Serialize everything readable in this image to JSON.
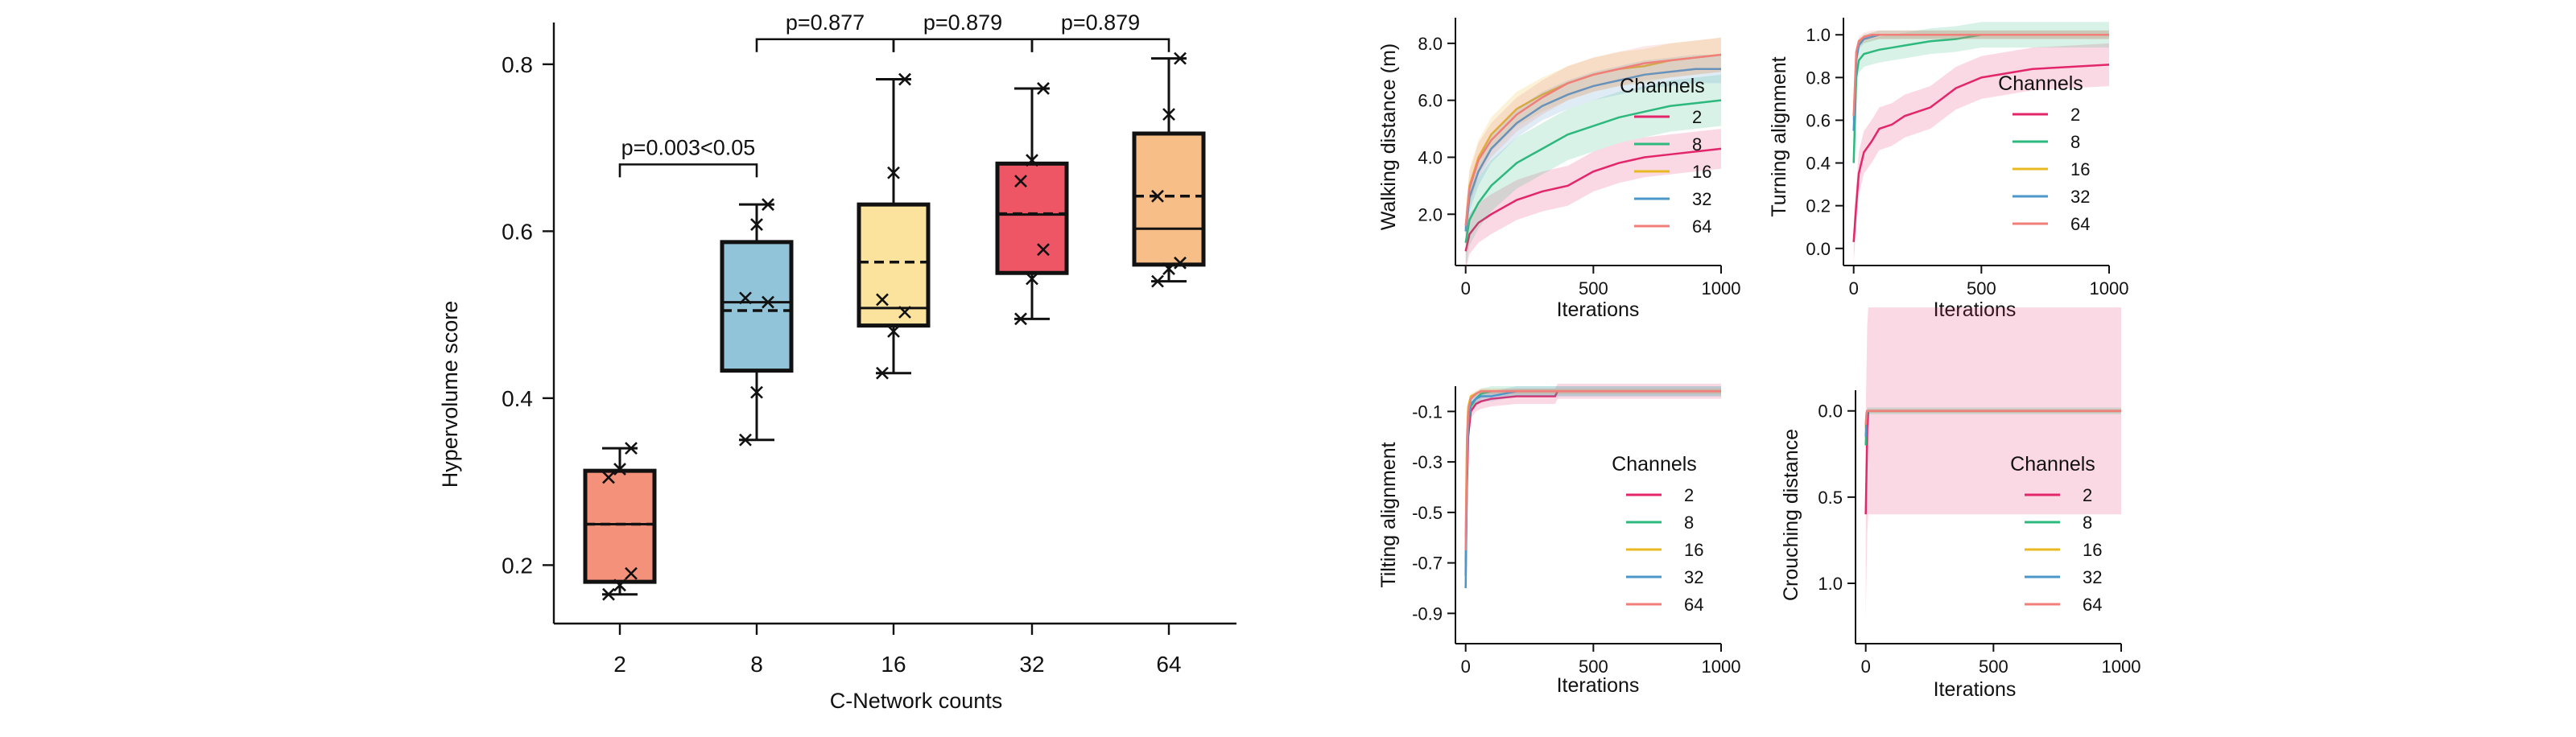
{
  "chart_data": [
    {
      "type": "box",
      "xlabel": "C-Network counts",
      "ylabel": "Hypervolume score",
      "ylim": [
        0.13,
        0.85
      ],
      "yticks": [
        "0.2",
        "0.4",
        "0.6",
        "0.8"
      ],
      "ytick_values": [
        0.2,
        0.4,
        0.6,
        0.8
      ],
      "categories": [
        "2",
        "8",
        "16",
        "32",
        "64"
      ],
      "colors": [
        "#F4917A",
        "#92C4D9",
        "#FBE39E",
        "#EE5565",
        "#F7BE87"
      ],
      "boxes": [
        {
          "category": "2",
          "whisker_low": 0.165,
          "q1": 0.18,
          "median": 0.249,
          "mean": 0.249,
          "q3": 0.313,
          "whisker_high": 0.34,
          "points": [
            0.165,
            0.176,
            0.19,
            0.305,
            0.315,
            0.34
          ]
        },
        {
          "category": "8",
          "whisker_low": 0.35,
          "q1": 0.433,
          "median": 0.515,
          "mean": 0.505,
          "q3": 0.587,
          "whisker_high": 0.632,
          "points": [
            0.35,
            0.407,
            0.515,
            0.52,
            0.608,
            0.632
          ]
        },
        {
          "category": "16",
          "whisker_low": 0.43,
          "q1": 0.487,
          "median": 0.508,
          "mean": 0.563,
          "q3": 0.632,
          "whisker_high": 0.782,
          "points": [
            0.43,
            0.48,
            0.503,
            0.518,
            0.67,
            0.782
          ]
        },
        {
          "category": "32",
          "whisker_low": 0.495,
          "q1": 0.55,
          "median": 0.62,
          "mean": 0.621,
          "q3": 0.681,
          "whisker_high": 0.771,
          "points": [
            0.495,
            0.543,
            0.578,
            0.66,
            0.685,
            0.771
          ]
        },
        {
          "category": "64",
          "whisker_low": 0.54,
          "q1": 0.56,
          "median": 0.603,
          "mean": 0.642,
          "q3": 0.717,
          "whisker_high": 0.807,
          "points": [
            0.54,
            0.555,
            0.562,
            0.642,
            0.74,
            0.807
          ]
        }
      ],
      "annotations": [
        {
          "text": "p=0.003<0.05",
          "from": "2",
          "to": "8",
          "level": 0.68
        },
        {
          "text": "p=0.877",
          "from": "8",
          "to": "16",
          "level": 0.83
        },
        {
          "text": "p=0.879",
          "from": "16",
          "to": "32",
          "level": 0.83
        },
        {
          "text": "p=0.879",
          "from": "32",
          "to": "64",
          "level": 0.83
        }
      ]
    },
    {
      "type": "line",
      "xlabel": "Iterations",
      "ylabel": "Walking distance (m)",
      "xlim": [
        -40,
        1000
      ],
      "ylim": [
        0.2,
        8.9
      ],
      "xticks": [
        "0",
        "500",
        "1000"
      ],
      "xtick_values": [
        0,
        500,
        1000
      ],
      "yticks": [
        "2.0",
        "4.0",
        "6.0",
        "8.0"
      ],
      "ytick_values": [
        2,
        4,
        6,
        8
      ],
      "legend_title": "Channels",
      "legend_position": "right",
      "x": [
        0,
        15,
        50,
        100,
        200,
        300,
        400,
        500,
        600,
        700,
        800,
        900,
        1000
      ],
      "series": [
        {
          "name": "2",
          "color": "#E3266A",
          "values": [
            0.7,
            1.3,
            1.7,
            2.0,
            2.5,
            2.8,
            3.0,
            3.5,
            3.8,
            4.0,
            4.1,
            4.2,
            4.3
          ],
          "band": 0.7
        },
        {
          "name": "8",
          "color": "#2DB87D",
          "values": [
            1.0,
            1.8,
            2.4,
            3.0,
            3.8,
            4.3,
            4.8,
            5.1,
            5.4,
            5.6,
            5.8,
            5.9,
            6.0
          ],
          "band": 0.9
        },
        {
          "name": "16",
          "color": "#E8B923",
          "values": [
            1.5,
            3.0,
            4.0,
            4.8,
            5.7,
            6.2,
            6.6,
            6.9,
            7.1,
            7.2,
            7.4,
            7.5,
            7.6
          ],
          "band": 0.6
        },
        {
          "name": "32",
          "color": "#4C97C9",
          "values": [
            1.4,
            2.6,
            3.5,
            4.3,
            5.2,
            5.8,
            6.2,
            6.5,
            6.7,
            6.9,
            7.0,
            7.1,
            7.1
          ],
          "band": 0.5
        },
        {
          "name": "64",
          "color": "#F07F7A",
          "values": [
            1.6,
            2.9,
            3.9,
            4.6,
            5.5,
            6.1,
            6.6,
            6.9,
            7.1,
            7.3,
            7.4,
            7.5,
            7.6
          ],
          "band": 0.6
        }
      ]
    },
    {
      "type": "line",
      "xlabel": "Iterations",
      "ylabel": "Turning alignment",
      "xlim": [
        -40,
        1000
      ],
      "ylim": [
        -0.08,
        1.08
      ],
      "xticks": [
        "0",
        "500",
        "1000"
      ],
      "xtick_values": [
        0,
        500,
        1000
      ],
      "yticks": [
        "0.0",
        "0.2",
        "0.4",
        "0.6",
        "0.8",
        "1.0"
      ],
      "ytick_values": [
        0,
        0.2,
        0.4,
        0.6,
        0.8,
        1.0
      ],
      "legend_title": "Channels",
      "legend_position": "right",
      "x": [
        0,
        10,
        20,
        40,
        70,
        100,
        150,
        200,
        300,
        400,
        500,
        700,
        1000
      ],
      "series": [
        {
          "name": "2",
          "color": "#E3266A",
          "values": [
            0.03,
            0.2,
            0.35,
            0.45,
            0.5,
            0.56,
            0.58,
            0.62,
            0.66,
            0.75,
            0.8,
            0.84,
            0.86
          ],
          "band": 0.1
        },
        {
          "name": "8",
          "color": "#2DB87D",
          "values": [
            0.4,
            0.8,
            0.88,
            0.91,
            0.92,
            0.93,
            0.94,
            0.95,
            0.97,
            0.98,
            1.0,
            1.0,
            1.0
          ],
          "band": 0.06
        },
        {
          "name": "16",
          "color": "#E8B923",
          "values": [
            0.6,
            0.9,
            0.96,
            0.98,
            0.99,
            1.0,
            1.0,
            1.0,
            1.0,
            1.0,
            1.0,
            1.0,
            1.0
          ],
          "band": 0.02
        },
        {
          "name": "32",
          "color": "#4C97C9",
          "values": [
            0.55,
            0.88,
            0.95,
            0.98,
            0.99,
            1.0,
            1.0,
            1.0,
            1.0,
            1.0,
            1.0,
            1.0,
            1.0
          ],
          "band": 0.02
        },
        {
          "name": "64",
          "color": "#F07F7A",
          "values": [
            0.62,
            0.92,
            0.97,
            0.99,
            1.0,
            1.0,
            1.0,
            1.0,
            1.0,
            1.0,
            1.0,
            1.0,
            1.0
          ],
          "band": 0.02
        }
      ]
    },
    {
      "type": "line",
      "xlabel": "Iterations",
      "ylabel": "Tilting alignment",
      "xlim": [
        -40,
        1000
      ],
      "ylim": [
        -1.02,
        0.0
      ],
      "xticks": [
        "0",
        "500",
        "1000"
      ],
      "xtick_values": [
        0,
        500,
        1000
      ],
      "yticks": [
        "-0.1",
        "-0.3",
        "-0.5",
        "-0.7",
        "-0.9"
      ],
      "ytick_values": [
        -0.1,
        -0.3,
        -0.5,
        -0.7,
        -0.9
      ],
      "legend_title": "Channels",
      "legend_position": "right",
      "x": [
        0,
        5,
        10,
        20,
        40,
        60,
        100,
        200,
        350,
        360,
        1000
      ],
      "series": [
        {
          "name": "2",
          "color": "#E3266A",
          "values": [
            -0.75,
            -0.4,
            -0.2,
            -0.1,
            -0.07,
            -0.06,
            -0.05,
            -0.04,
            -0.04,
            -0.02,
            -0.02
          ],
          "band": 0.03
        },
        {
          "name": "8",
          "color": "#2DB87D",
          "values": [
            -0.7,
            -0.3,
            -0.15,
            -0.08,
            -0.05,
            -0.03,
            -0.02,
            -0.02,
            -0.02,
            -0.02,
            -0.02
          ],
          "band": 0.02
        },
        {
          "name": "16",
          "color": "#E8B923",
          "values": [
            -0.6,
            -0.2,
            -0.08,
            -0.04,
            -0.03,
            -0.02,
            -0.02,
            -0.02,
            -0.02,
            -0.02,
            -0.02
          ],
          "band": 0.01
        },
        {
          "name": "32",
          "color": "#4C97C9",
          "values": [
            -0.8,
            -0.35,
            -0.15,
            -0.07,
            -0.05,
            -0.04,
            -0.04,
            -0.02,
            -0.02,
            -0.02,
            -0.02
          ],
          "band": 0.02
        },
        {
          "name": "64",
          "color": "#F07F7A",
          "values": [
            -0.65,
            -0.25,
            -0.1,
            -0.05,
            -0.03,
            -0.02,
            -0.02,
            -0.02,
            -0.02,
            -0.02,
            -0.02
          ],
          "band": 0.01
        }
      ]
    },
    {
      "type": "line",
      "xlabel": "Iterations",
      "ylabel": "Crouching distance",
      "xlim": [
        -40,
        1000
      ],
      "ylim": [
        -0.12,
        1.35
      ],
      "y_inverted": true,
      "xticks": [
        "0",
        "500",
        "1000"
      ],
      "xtick_values": [
        0,
        500,
        1000
      ],
      "yticks": [
        "0.0",
        "0.5",
        "1.0"
      ],
      "ytick_values": [
        0,
        0.5,
        1.0
      ],
      "legend_title": "Channels",
      "legend_position": "right",
      "x": [
        0,
        3,
        6,
        10,
        1000
      ],
      "series": [
        {
          "name": "2",
          "color": "#E3266A",
          "values": [
            0.6,
            0.35,
            0.1,
            0.0,
            0.0
          ],
          "band": 0.6
        },
        {
          "name": "8",
          "color": "#2DB87D",
          "values": [
            0.2,
            0.05,
            0.0,
            0.0,
            0.0
          ],
          "band": 0.02
        },
        {
          "name": "16",
          "color": "#E8B923",
          "values": [
            0.1,
            0.02,
            0.0,
            0.0,
            0.0
          ],
          "band": 0.01
        },
        {
          "name": "32",
          "color": "#4C97C9",
          "values": [
            0.15,
            0.03,
            0.0,
            0.0,
            0.0
          ],
          "band": 0.01
        },
        {
          "name": "64",
          "color": "#F07F7A",
          "values": [
            0.08,
            0.01,
            0.0,
            0.0,
            0.0
          ],
          "band": 0.01
        }
      ]
    }
  ]
}
